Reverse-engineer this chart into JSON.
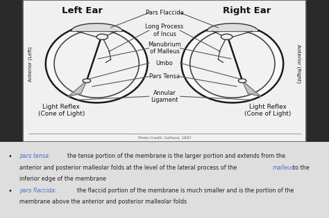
{
  "bg_color": "#2a2a2a",
  "diagram_bg": "#e8e8e8",
  "diagram_border_color": "#555555",
  "left_ear_label": "Left Ear",
  "right_ear_label": "Right Ear",
  "labels_center": [
    "Pars Flaccida",
    "Long Process\nof Incus",
    "Manubrium\nof Malleus",
    "Umbo",
    "Pars Tensa",
    "Annular\nLigament"
  ],
  "label_left_bottom": "Light Reflex\n(Cone of Light)",
  "label_right_bottom": "Light Reflex\n(Cone of Light)",
  "anterior_left": "Anterior (Left)",
  "anterior_right": "Anterior (Right)",
  "credit": "Photo Credit: Gelfand, 1997",
  "bullet1_label": "pars tensa",
  "bullet1_label_color": "#4472C4",
  "bullet1_link": "malleus",
  "bullet1_link_color": "#4472C4",
  "bullet2_label": "pars flaccida",
  "bullet2_label_color": "#4472C4",
  "text_color": "#222222",
  "diagram_text_color": "#111111",
  "line_color": "#555555",
  "text_bg": "#dcdcdc"
}
